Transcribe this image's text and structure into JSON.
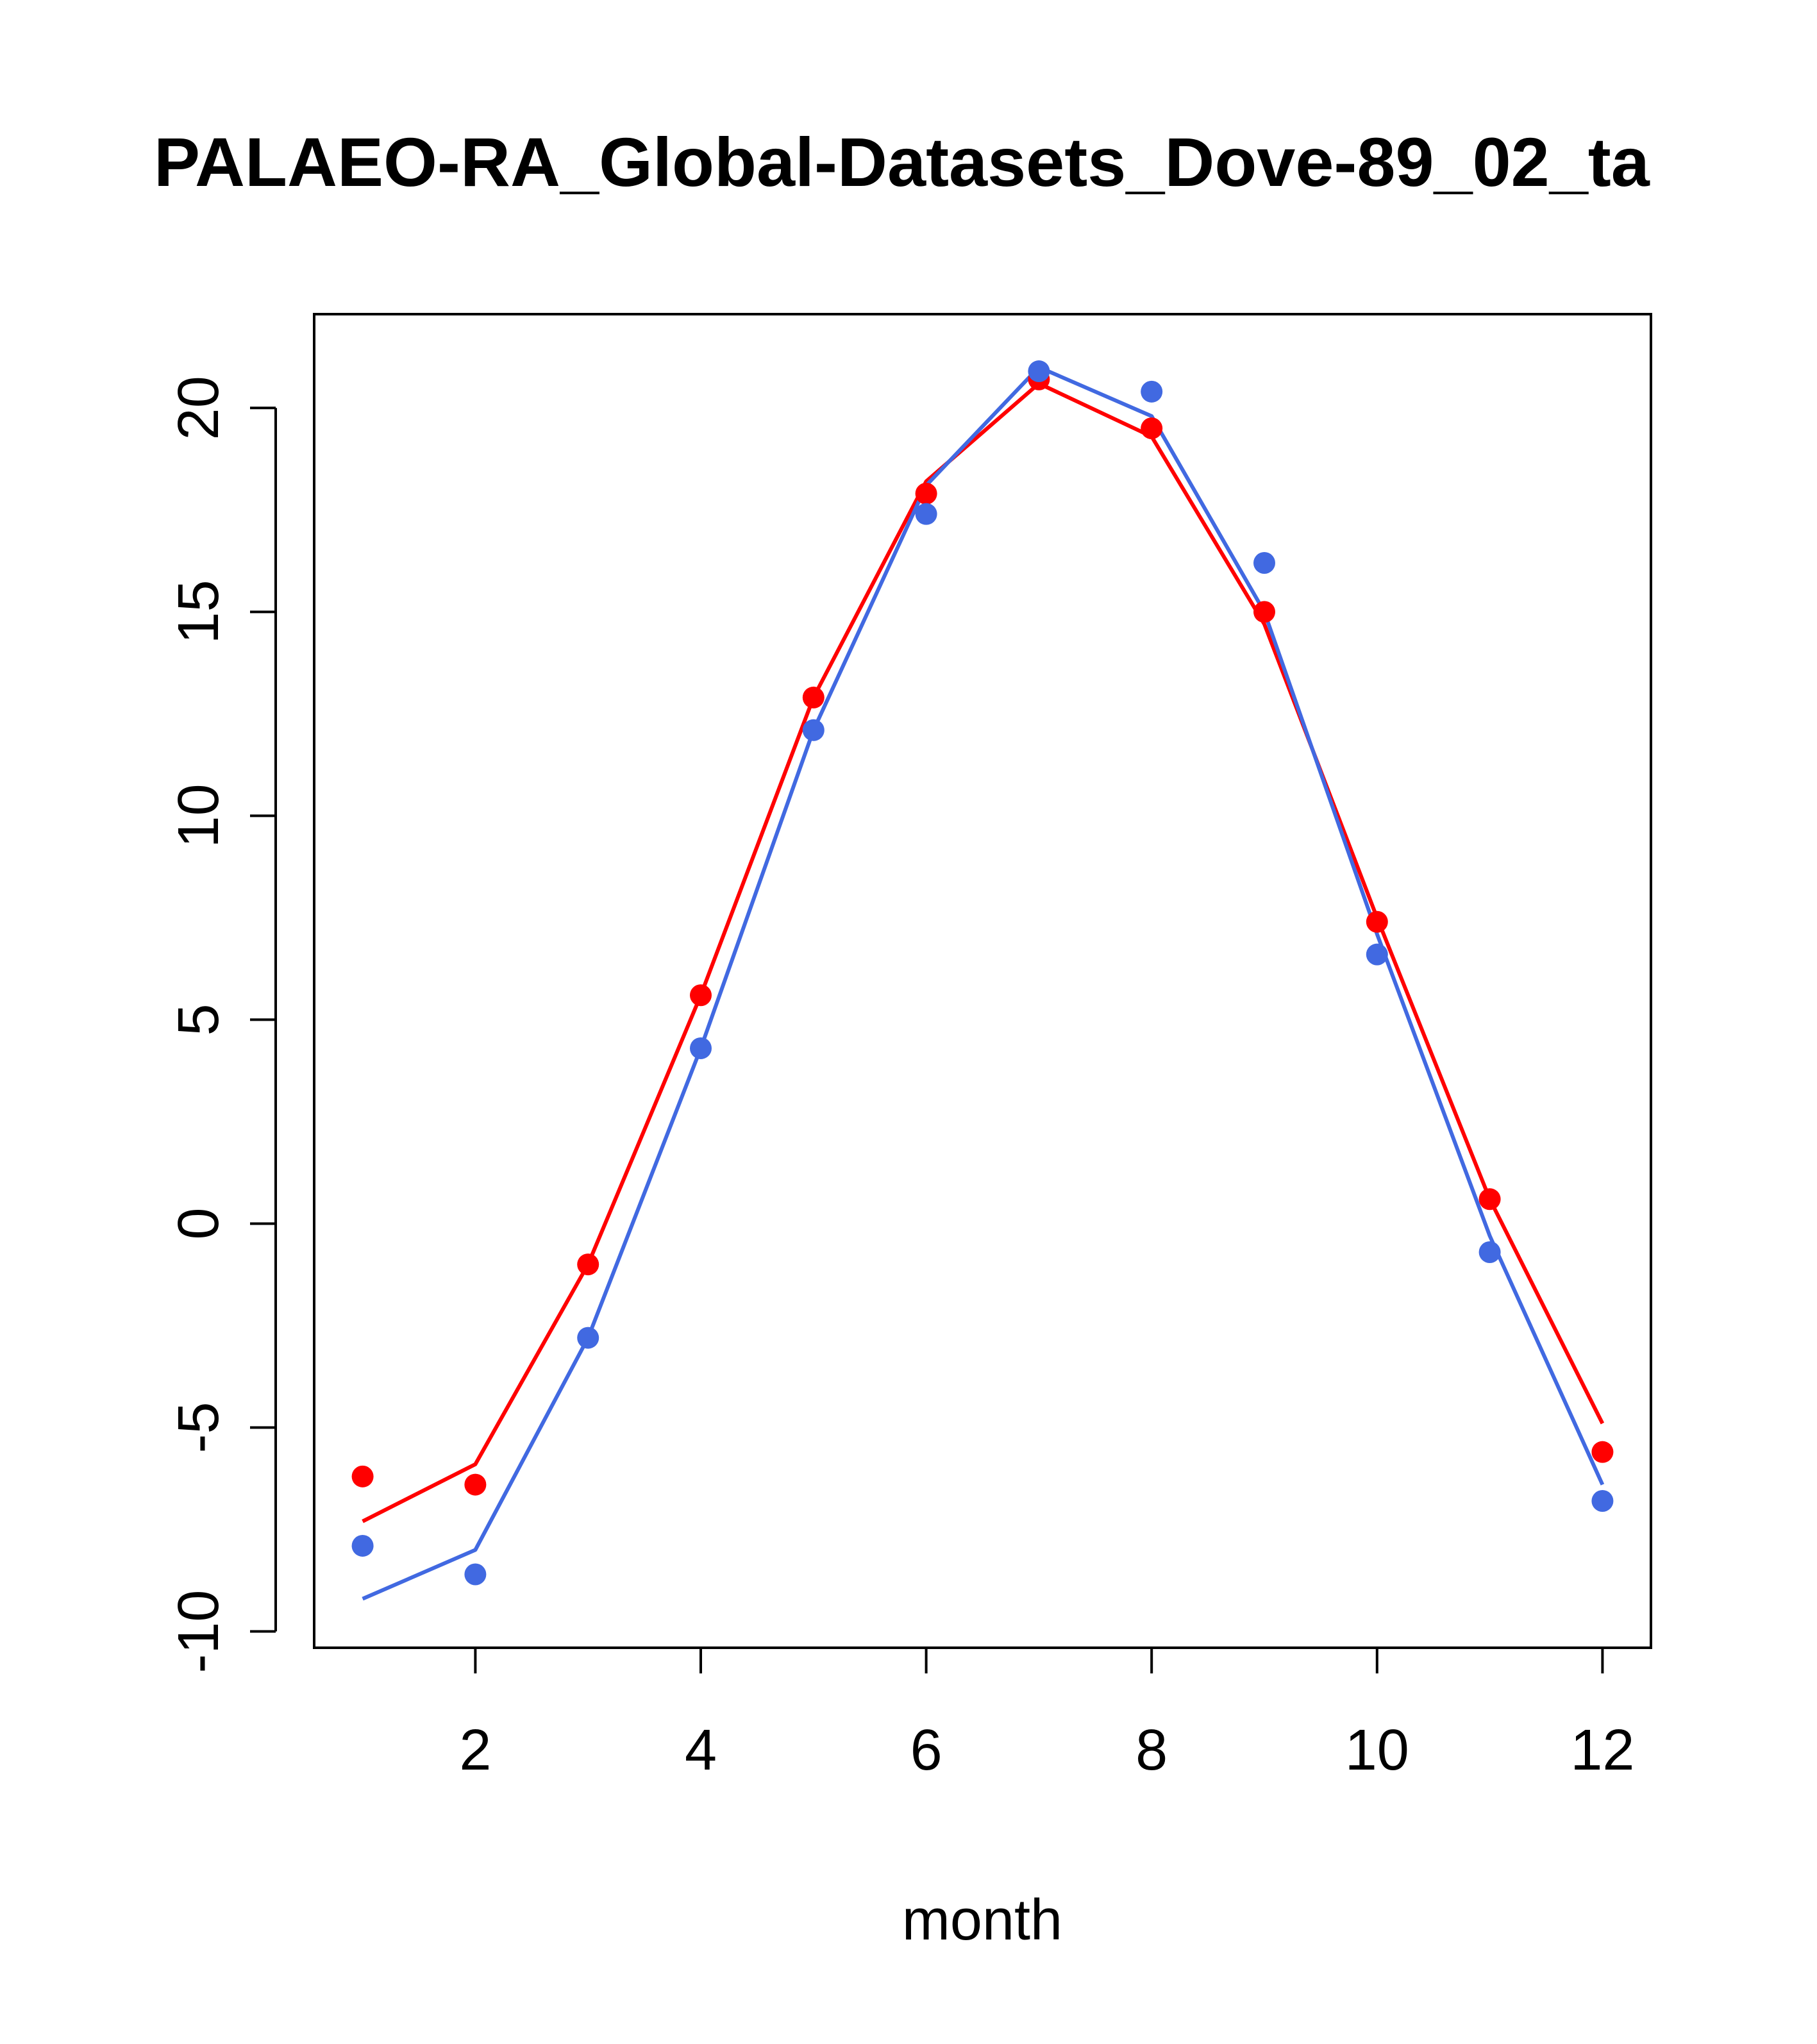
{
  "chart_data": {
    "type": "line",
    "title": "PALAEO-RA_Global-Datasets_Dove-89_02_ta",
    "xlabel": "month",
    "ylabel": "",
    "xlim": [
      0.57,
      12.43
    ],
    "ylim": [
      -10.4,
      22.3
    ],
    "x_ticks": [
      "2",
      "4",
      "6",
      "8",
      "10",
      "12"
    ],
    "x_tick_values": [
      2,
      4,
      6,
      8,
      10,
      12
    ],
    "y_ticks": [
      "-10",
      "-5",
      "0",
      "5",
      "10",
      "15",
      "20"
    ],
    "y_tick_values": [
      -10,
      -5,
      0,
      5,
      10,
      15,
      20
    ],
    "grid": false,
    "legend": "none",
    "x": [
      1,
      2,
      3,
      4,
      5,
      6,
      7,
      8,
      9,
      10,
      11,
      12
    ],
    "series": [
      {
        "color": "#ff0000",
        "points": [
          -6.2,
          -6.4,
          -1.0,
          5.6,
          12.9,
          17.9,
          20.7,
          19.5,
          15.0,
          7.4,
          0.6,
          -5.6
        ],
        "line": [
          -7.3,
          -5.9,
          -1.0,
          5.6,
          12.9,
          18.2,
          20.6,
          19.3,
          14.7,
          7.5,
          0.6,
          -4.9
        ]
      },
      {
        "color": "#4169e1",
        "points": [
          -7.9,
          -8.6,
          -2.8,
          4.3,
          12.1,
          17.4,
          20.9,
          20.4,
          16.2,
          6.6,
          -0.7,
          -6.8
        ],
        "line": [
          -9.2,
          -8.0,
          -2.8,
          4.3,
          12.1,
          18.1,
          21.0,
          19.8,
          15.0,
          7.1,
          -0.3,
          -6.4
        ]
      }
    ]
  }
}
